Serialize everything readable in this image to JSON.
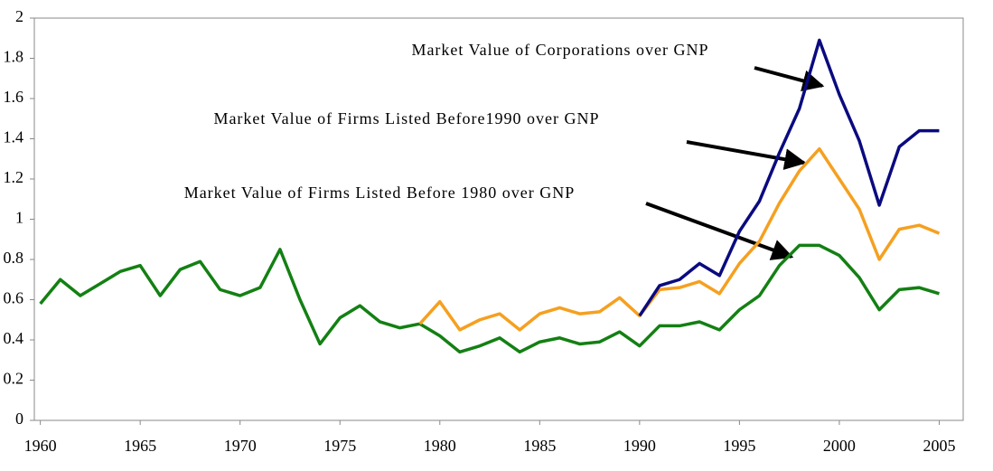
{
  "chart_data": {
    "type": "line",
    "x": [
      1960,
      1961,
      1962,
      1963,
      1964,
      1965,
      1966,
      1967,
      1968,
      1969,
      1970,
      1971,
      1972,
      1973,
      1974,
      1975,
      1976,
      1977,
      1978,
      1979,
      1980,
      1981,
      1982,
      1983,
      1984,
      1985,
      1986,
      1987,
      1988,
      1989,
      1990,
      1991,
      1992,
      1993,
      1994,
      1995,
      1996,
      1997,
      1998,
      1999,
      2000,
      2001,
      2002,
      2003,
      2004,
      2005
    ],
    "series": [
      {
        "name": "Market Value of Firms Listed Before 1980 over GNP",
        "color": "#138013",
        "values": [
          0.58,
          0.7,
          0.62,
          0.68,
          0.74,
          0.77,
          0.62,
          0.75,
          0.79,
          0.65,
          0.62,
          0.66,
          0.85,
          0.6,
          0.38,
          0.51,
          0.57,
          0.49,
          0.46,
          0.48,
          0.42,
          0.34,
          0.37,
          0.41,
          0.34,
          0.39,
          0.41,
          0.38,
          0.39,
          0.44,
          0.37,
          0.47,
          0.47,
          0.49,
          0.45,
          0.55,
          0.62,
          0.77,
          0.87,
          0.87,
          0.82,
          0.71,
          0.55,
          0.65,
          0.66,
          0.63
        ]
      },
      {
        "name": "Market Value of Firms Listed Before1990 over GNP",
        "color": "#f5a020",
        "values": [
          null,
          null,
          null,
          null,
          null,
          null,
          null,
          null,
          null,
          null,
          null,
          null,
          null,
          null,
          null,
          null,
          null,
          null,
          null,
          0.48,
          0.59,
          0.45,
          0.5,
          0.53,
          0.45,
          0.53,
          0.56,
          0.53,
          0.54,
          0.61,
          0.52,
          0.65,
          0.66,
          0.69,
          0.63,
          0.78,
          0.89,
          1.08,
          1.24,
          1.35,
          1.2,
          1.05,
          0.8,
          0.95,
          0.97,
          0.93
        ]
      },
      {
        "name": "Market Value of Corporations over GNP",
        "color": "#0a0a80",
        "values": [
          null,
          null,
          null,
          null,
          null,
          null,
          null,
          null,
          null,
          null,
          null,
          null,
          null,
          null,
          null,
          null,
          null,
          null,
          null,
          null,
          null,
          null,
          null,
          null,
          null,
          null,
          null,
          null,
          null,
          null,
          0.52,
          0.67,
          0.7,
          0.78,
          0.72,
          0.94,
          1.09,
          1.33,
          1.55,
          1.89,
          1.62,
          1.39,
          1.07,
          1.36,
          1.44,
          1.44
        ]
      }
    ],
    "xlim": [
      1959.7,
      2006.2
    ],
    "xticks": [
      1960,
      1965,
      1970,
      1975,
      1980,
      1985,
      1990,
      1995,
      2000,
      2005
    ],
    "ylim": [
      0,
      2
    ],
    "yticks": [
      0,
      0.2,
      0.4,
      0.6,
      0.8,
      1,
      1.2,
      1.4,
      1.6,
      1.8,
      2
    ]
  }
}
